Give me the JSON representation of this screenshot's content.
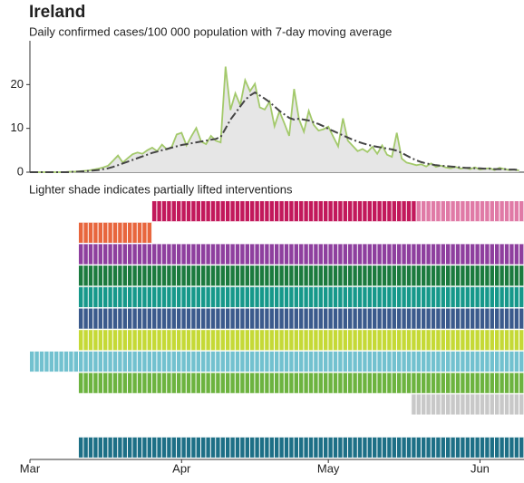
{
  "chart_data": {
    "type": "line",
    "title": "Ireland",
    "subtitle": "Daily confirmed cases/100 000 population with 7-day moving average",
    "note": "Lighter shade indicates partially lifted interventions",
    "xlim": [
      0,
      101
    ],
    "xticks": [
      {
        "value": 0,
        "label": "Mar"
      },
      {
        "value": 31,
        "label": "Apr"
      },
      {
        "value": 61,
        "label": "May"
      },
      {
        "value": 92,
        "label": "Jun"
      }
    ],
    "ylim": [
      0,
      30
    ],
    "yticks": [
      0,
      10,
      20
    ],
    "x": [
      0,
      1,
      2,
      3,
      4,
      5,
      6,
      7,
      8,
      9,
      10,
      11,
      12,
      13,
      14,
      15,
      16,
      17,
      18,
      19,
      20,
      21,
      22,
      23,
      24,
      25,
      26,
      27,
      28,
      29,
      30,
      31,
      32,
      33,
      34,
      35,
      36,
      37,
      38,
      39,
      40,
      41,
      42,
      43,
      44,
      45,
      46,
      47,
      48,
      49,
      50,
      51,
      52,
      53,
      54,
      55,
      56,
      57,
      58,
      59,
      60,
      61,
      62,
      63,
      64,
      65,
      66,
      67,
      68,
      69,
      70,
      71,
      72,
      73,
      74,
      75,
      76,
      77,
      78,
      79,
      80,
      81,
      82,
      83,
      84,
      85,
      86,
      87,
      88,
      89,
      90,
      91,
      92,
      93,
      94,
      95,
      96,
      97,
      98,
      99,
      100
    ],
    "series": [
      {
        "name": "Daily cases",
        "color": "#a3c96b",
        "fill": "#e6e6e6",
        "values": [
          0,
          0,
          0,
          0,
          0,
          0,
          0,
          0,
          0.1,
          0.1,
          0.2,
          0.3,
          0.4,
          0.6,
          0.8,
          1.1,
          1.5,
          2.6,
          3.8,
          2.2,
          3.2,
          4.1,
          4.5,
          4.2,
          5.0,
          5.6,
          4.8,
          6.3,
          5.2,
          5.8,
          8.6,
          9.0,
          6.1,
          8.2,
          10.1,
          7.0,
          6.4,
          8.3,
          7.2,
          6.8,
          24.1,
          14.2,
          18.0,
          15.3,
          21.0,
          18.5,
          20.2,
          14.8,
          14.3,
          16.1,
          10.5,
          13.9,
          11.2,
          8.3,
          19.0,
          12.1,
          9.2,
          14.0,
          10.8,
          9.5,
          9.8,
          10.4,
          8.1,
          5.9,
          12.3,
          7.2,
          6.0,
          4.8,
          5.3,
          4.6,
          5.8,
          4.2,
          6.1,
          4.0,
          3.5,
          9.0,
          3.1,
          2.2,
          1.9,
          1.6,
          1.8,
          1.3,
          2.0,
          1.2,
          1.5,
          1.1,
          0.9,
          1.2,
          0.8,
          1.0,
          0.7,
          1.1,
          0.6,
          0.8,
          0.9,
          0.5,
          1.0,
          0.7,
          0.5,
          0.6,
          0.4
        ]
      },
      {
        "name": "7-day moving average",
        "color": "#444444",
        "dashed": true,
        "values": [
          0,
          0,
          0,
          0,
          0,
          0,
          0,
          0,
          0,
          0.1,
          0.1,
          0.2,
          0.3,
          0.4,
          0.5,
          0.7,
          0.9,
          1.2,
          1.6,
          2.0,
          2.4,
          2.8,
          3.2,
          3.6,
          4.0,
          4.4,
          4.7,
          5.0,
          5.3,
          5.6,
          5.9,
          6.2,
          6.4,
          6.6,
          6.8,
          7.0,
          7.2,
          7.4,
          7.6,
          8.0,
          10.0,
          12.0,
          13.5,
          15.0,
          16.5,
          17.5,
          18.2,
          17.5,
          16.8,
          16.0,
          15.0,
          14.0,
          13.2,
          12.4,
          12.0,
          12.2,
          12.0,
          11.8,
          11.4,
          11.0,
          10.5,
          9.9,
          9.4,
          8.9,
          8.4,
          7.9,
          7.4,
          7.0,
          6.6,
          6.3,
          6.0,
          5.8,
          5.6,
          5.4,
          5.2,
          4.9,
          4.4,
          3.8,
          3.2,
          2.7,
          2.3,
          2.0,
          1.8,
          1.6,
          1.5,
          1.4,
          1.3,
          1.2,
          1.1,
          1.0,
          1.0,
          0.9,
          0.9,
          0.8,
          0.8,
          0.7,
          0.7,
          0.7,
          0.6,
          0.6,
          0.5
        ]
      }
    ],
    "interventions": [
      {
        "color": "#c2185b",
        "start": 25,
        "end": 101,
        "lifted": 79,
        "lifted_color": "#e07aa6"
      },
      {
        "color": "#e8663d",
        "start": 10,
        "end": 25
      },
      {
        "color": "#8e3f9e",
        "start": 10,
        "end": 101
      },
      {
        "color": "#1b7a3e",
        "start": 10,
        "end": 101
      },
      {
        "color": "#16988a",
        "start": 10,
        "end": 101
      },
      {
        "color": "#3b5a8c",
        "start": 10,
        "end": 101
      },
      {
        "color": "#c5d936",
        "start": 10,
        "end": 101
      },
      {
        "color": "#72c1cf",
        "start": 0,
        "end": 101
      },
      {
        "color": "#6cb33f",
        "start": 10,
        "end": 101
      },
      {
        "color": "#c8c8c8",
        "start": 78,
        "end": 101
      },
      null,
      {
        "color": "#1d6f86",
        "start": 10,
        "end": 101
      }
    ]
  }
}
